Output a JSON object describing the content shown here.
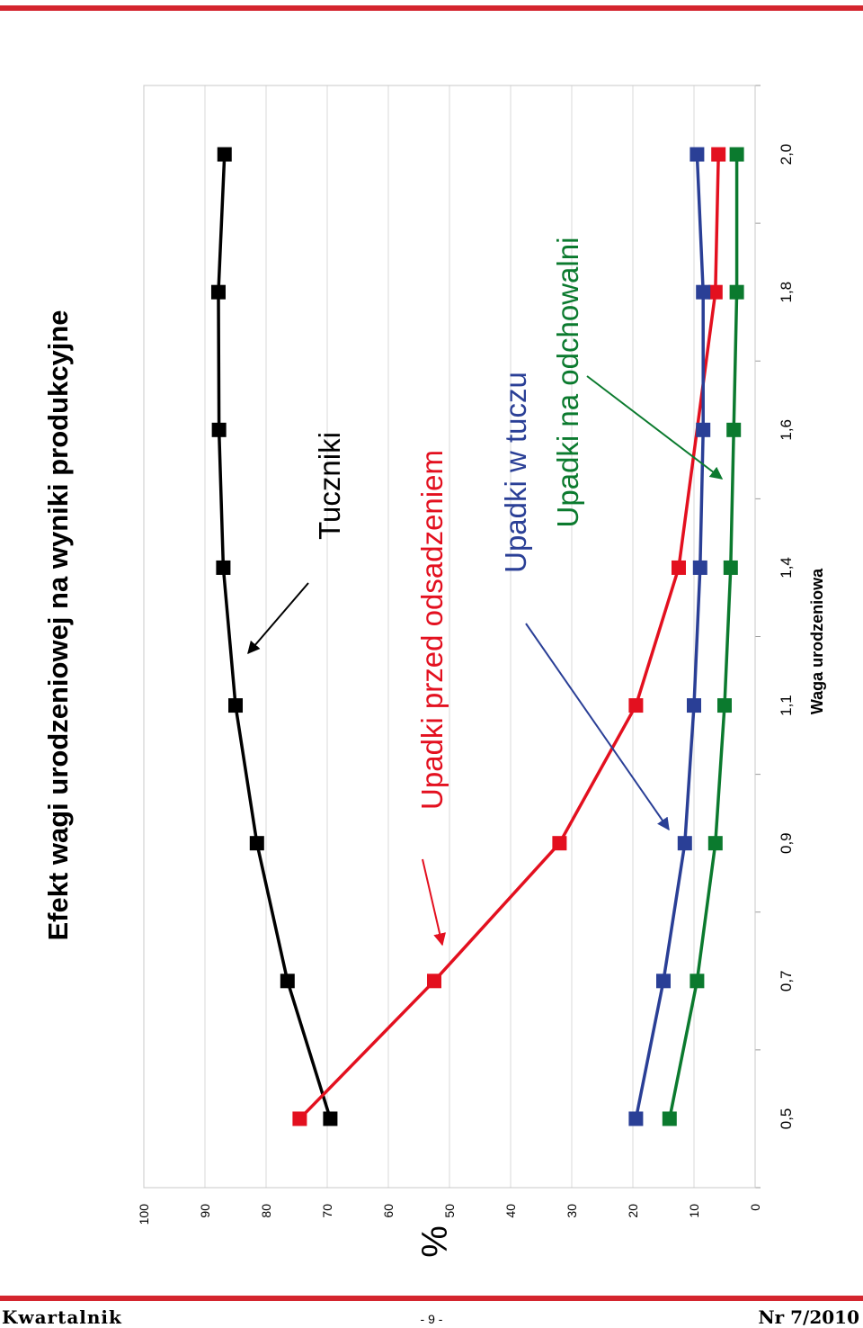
{
  "footer": {
    "publication": "Kwartalnik",
    "page": "- 9 -",
    "issue": "Nr 7/2010"
  },
  "colors": {
    "rule": "#d4252e",
    "tuczniki": "#000000",
    "przed_odsadzeniem": "#e3101f",
    "w_tuczu": "#2a3f96",
    "na_odchowalni": "#0b7a2e"
  },
  "chart_data": {
    "type": "line",
    "title": "Efekt wagi urodzeniowej na wyniki produkcyjne",
    "xlabel": "Waga urodzeniowa",
    "ylabel": "%",
    "categories": [
      "0,5",
      "0,7",
      "0,9",
      "1,1",
      "1,4",
      "1,6",
      "1,8",
      "2,0"
    ],
    "ylim": [
      0,
      100
    ],
    "yticks": [
      0,
      10,
      20,
      30,
      40,
      50,
      60,
      70,
      80,
      90,
      100
    ],
    "grid": true,
    "orientation": "rotated-90-ccw",
    "series": [
      {
        "name": "Tuczniki",
        "color": "#000000",
        "values": [
          69.5,
          76.5,
          81.5,
          85,
          87,
          87.7,
          87.8,
          86.8
        ]
      },
      {
        "name": "Upadki przed odsadzeniem",
        "color": "#e3101f",
        "values": [
          74.5,
          52.5,
          32,
          19.5,
          12.5,
          null,
          6.5,
          6
        ]
      },
      {
        "name": "Upadki w tuczu",
        "color": "#2a3f96",
        "values": [
          19.5,
          15,
          11.5,
          10,
          9,
          8.5,
          8.5,
          9.5
        ]
      },
      {
        "name": "Upadki na odchowalni",
        "color": "#0b7a2e",
        "values": [
          14,
          9.5,
          6.5,
          5,
          4,
          3.5,
          3,
          3
        ]
      }
    ],
    "annotations": [
      {
        "text": "Tuczniki",
        "series": "Tuczniki",
        "category": "1,4"
      },
      {
        "text": "Upadki przed odsadzeniem",
        "series": "Upadki przed odsadzeniem",
        "category": "0,7"
      },
      {
        "text": "Upadki w tuczu",
        "series": "Upadki w tuczu",
        "category": "0,9"
      },
      {
        "text": "Upadki na odchowalni",
        "series": "Upadki na odchowalni",
        "category": "1,6"
      }
    ]
  }
}
